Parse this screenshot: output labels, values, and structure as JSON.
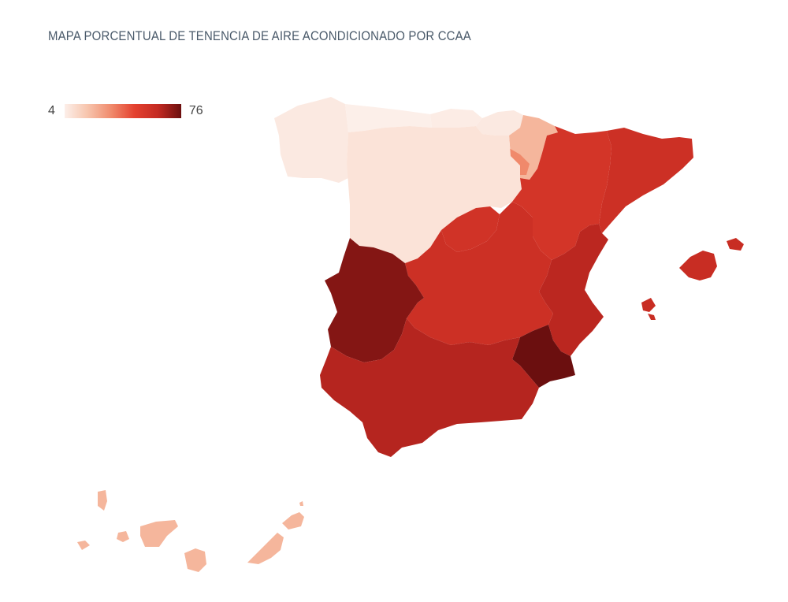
{
  "title": "MAPA PORCENTUAL DE TENENCIA DE AIRE ACONDICIONADO POR CCAA",
  "legend": {
    "min_label": "4",
    "max_label": "76",
    "min": 4,
    "max": 76,
    "colors": [
      "#fcefe9",
      "#f7c4ac",
      "#f08a6c",
      "#e4412f",
      "#c42a22",
      "#6b0f0f"
    ]
  },
  "regions": [
    {
      "id": "galicia",
      "value": 6
    },
    {
      "id": "asturias",
      "value": 4
    },
    {
      "id": "cantabria",
      "value": 5
    },
    {
      "id": "pais-vasco",
      "value": 6
    },
    {
      "id": "navarra",
      "value": 22
    },
    {
      "id": "la-rioja",
      "value": 33
    },
    {
      "id": "castilla-leon",
      "value": 8
    },
    {
      "id": "madrid",
      "value": 56
    },
    {
      "id": "castilla-la-mancha",
      "value": 58
    },
    {
      "id": "aragon",
      "value": 55
    },
    {
      "id": "cataluna",
      "value": 58
    },
    {
      "id": "comunidad-valenciana",
      "value": 63
    },
    {
      "id": "baleares",
      "value": 60
    },
    {
      "id": "extremadura",
      "value": 72
    },
    {
      "id": "andalucia",
      "value": 64
    },
    {
      "id": "murcia",
      "value": 76
    },
    {
      "id": "canarias",
      "value": 22
    }
  ]
}
